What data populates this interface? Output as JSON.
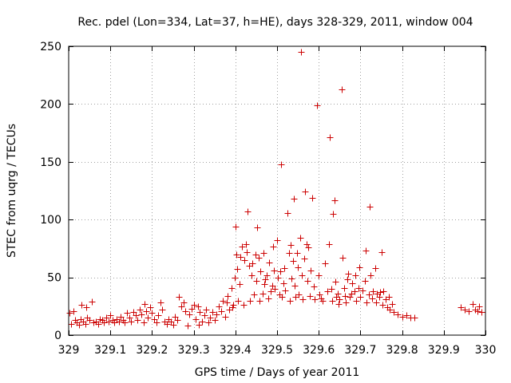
{
  "chart_data": {
    "type": "scatter",
    "title": "Rec. pdel (Lon=334, Lat=37, h=HE), days 328-329, 2011, window 004",
    "xlabel": "GPS time / Days of year 2011",
    "ylabel": "STEC from uqrg / TECUs",
    "xlim": [
      329,
      330
    ],
    "ylim": [
      0,
      250
    ],
    "x_ticks": [
      329,
      329.1,
      329.2,
      329.3,
      329.4,
      329.5,
      329.6,
      329.7,
      329.8,
      329.9,
      330
    ],
    "x_tick_labels": [
      "329",
      "329.1",
      "329.2",
      "329.3",
      "329.4",
      "329.5",
      "329.6",
      "329.7",
      "329.8",
      "329.9",
      "330"
    ],
    "y_ticks": [
      0,
      50,
      100,
      150,
      200,
      250
    ],
    "y_tick_labels": [
      "0",
      "50",
      "100",
      "150",
      "200",
      "250"
    ],
    "grid": true,
    "marker": "plus",
    "marker_color": "#cc0000",
    "series": [
      {
        "points": [
          [
            329.002,
            19
          ],
          [
            329.005,
            10
          ],
          [
            329.012,
            21
          ],
          [
            329.015,
            13
          ],
          [
            329.02,
            11
          ],
          [
            329.025,
            9
          ],
          [
            329.028,
            14
          ],
          [
            329.03,
            26
          ],
          [
            329.035,
            12
          ],
          [
            329.04,
            10
          ],
          [
            329.042,
            24
          ],
          [
            329.045,
            15
          ],
          [
            329.05,
            13
          ],
          [
            329.055,
            29
          ],
          [
            329.06,
            11
          ],
          [
            329.065,
            12
          ],
          [
            329.07,
            10
          ],
          [
            329.075,
            14
          ],
          [
            329.08,
            13
          ],
          [
            329.085,
            11
          ],
          [
            329.09,
            15
          ],
          [
            329.095,
            12
          ],
          [
            329.1,
            17
          ],
          [
            329.105,
            13
          ],
          [
            329.11,
            11
          ],
          [
            329.115,
            14
          ],
          [
            329.12,
            12
          ],
          [
            329.125,
            16
          ],
          [
            329.13,
            13
          ],
          [
            329.135,
            11
          ],
          [
            329.14,
            19
          ],
          [
            329.145,
            15
          ],
          [
            329.15,
            12
          ],
          [
            329.155,
            20
          ],
          [
            329.16,
            17
          ],
          [
            329.165,
            13
          ],
          [
            329.17,
            22
          ],
          [
            329.175,
            18
          ],
          [
            329.18,
            11
          ],
          [
            329.182,
            27
          ],
          [
            329.185,
            21
          ],
          [
            329.19,
            15
          ],
          [
            329.195,
            24
          ],
          [
            329.2,
            19
          ],
          [
            329.205,
            14
          ],
          [
            329.21,
            11
          ],
          [
            329.215,
            17
          ],
          [
            329.22,
            28
          ],
          [
            329.225,
            22
          ],
          [
            329.23,
            12
          ],
          [
            329.235,
            10
          ],
          [
            329.24,
            14
          ],
          [
            329.245,
            12
          ],
          [
            329.25,
            9
          ],
          [
            329.255,
            16
          ],
          [
            329.26,
            13
          ],
          [
            329.265,
            33
          ],
          [
            329.27,
            25
          ],
          [
            329.275,
            28
          ],
          [
            329.28,
            21
          ],
          [
            329.285,
            8
          ],
          [
            329.29,
            18
          ],
          [
            329.295,
            23
          ],
          [
            329.3,
            26
          ],
          [
            329.305,
            14
          ],
          [
            329.31,
            25
          ],
          [
            329.312,
            9
          ],
          [
            329.315,
            20
          ],
          [
            329.32,
            12
          ],
          [
            329.325,
            17
          ],
          [
            329.33,
            22
          ],
          [
            329.335,
            11
          ],
          [
            329.34,
            15
          ],
          [
            329.345,
            20
          ],
          [
            329.35,
            13
          ],
          [
            329.355,
            18
          ],
          [
            329.36,
            25
          ],
          [
            329.365,
            21
          ],
          [
            329.37,
            30
          ],
          [
            329.375,
            16
          ],
          [
            329.38,
            28
          ],
          [
            329.382,
            34
          ],
          [
            329.385,
            22
          ],
          [
            329.39,
            41
          ],
          [
            329.393,
            24
          ],
          [
            329.395,
            26
          ],
          [
            329.398,
            50
          ],
          [
            329.4,
            94
          ],
          [
            329.402,
            70
          ],
          [
            329.404,
            57
          ],
          [
            329.406,
            30
          ],
          [
            329.41,
            44
          ],
          [
            329.412,
            68
          ],
          [
            329.415,
            77
          ],
          [
            329.42,
            26
          ],
          [
            329.422,
            65
          ],
          [
            329.425,
            79
          ],
          [
            329.428,
            72
          ],
          [
            329.43,
            107
          ],
          [
            329.432,
            60
          ],
          [
            329.435,
            30
          ],
          [
            329.438,
            52
          ],
          [
            329.44,
            62
          ],
          [
            329.445,
            35
          ],
          [
            329.448,
            70
          ],
          [
            329.45,
            47
          ],
          [
            329.453,
            93
          ],
          [
            329.455,
            67
          ],
          [
            329.458,
            30
          ],
          [
            329.46,
            55
          ],
          [
            329.465,
            36
          ],
          [
            329.468,
            71
          ],
          [
            329.47,
            44
          ],
          [
            329.472,
            48
          ],
          [
            329.475,
            52
          ],
          [
            329.478,
            32
          ],
          [
            329.48,
            63
          ],
          [
            329.485,
            38
          ],
          [
            329.488,
            43
          ],
          [
            329.49,
            77
          ],
          [
            329.492,
            56
          ],
          [
            329.495,
            40
          ],
          [
            329.5,
            82
          ],
          [
            329.502,
            50
          ],
          [
            329.505,
            35
          ],
          [
            329.508,
            55
          ],
          [
            329.51,
            148
          ],
          [
            329.512,
            33
          ],
          [
            329.515,
            45
          ],
          [
            329.518,
            58
          ],
          [
            329.52,
            39
          ],
          [
            329.525,
            106
          ],
          [
            329.528,
            71
          ],
          [
            329.53,
            30
          ],
          [
            329.532,
            78
          ],
          [
            329.535,
            49
          ],
          [
            329.538,
            64
          ],
          [
            329.54,
            118
          ],
          [
            329.542,
            43
          ],
          [
            329.545,
            33
          ],
          [
            329.548,
            71
          ],
          [
            329.55,
            59
          ],
          [
            329.552,
            35
          ],
          [
            329.555,
            84
          ],
          [
            329.557,
            245
          ],
          [
            329.56,
            52
          ],
          [
            329.562,
            31
          ],
          [
            329.565,
            66
          ],
          [
            329.568,
            124
          ],
          [
            329.57,
            79
          ],
          [
            329.572,
            47
          ],
          [
            329.575,
            76
          ],
          [
            329.578,
            34
          ],
          [
            329.58,
            56
          ],
          [
            329.585,
            119
          ],
          [
            329.588,
            42
          ],
          [
            329.59,
            31
          ],
          [
            329.595,
            199
          ],
          [
            329.6,
            52
          ],
          [
            329.602,
            35
          ],
          [
            329.605,
            32
          ],
          [
            329.61,
            30
          ],
          [
            329.615,
            62
          ],
          [
            329.62,
            38
          ],
          [
            329.625,
            79
          ],
          [
            329.627,
            171
          ],
          [
            329.63,
            40
          ],
          [
            329.632,
            30
          ],
          [
            329.635,
            105
          ],
          [
            329.638,
            117
          ],
          [
            329.64,
            46
          ],
          [
            329.642,
            33
          ],
          [
            329.645,
            36
          ],
          [
            329.648,
            27
          ],
          [
            329.65,
            31
          ],
          [
            329.655,
            213
          ],
          [
            329.657,
            67
          ],
          [
            329.66,
            41
          ],
          [
            329.662,
            34
          ],
          [
            329.665,
            28
          ],
          [
            329.668,
            48
          ],
          [
            329.67,
            53
          ],
          [
            329.675,
            33
          ],
          [
            329.678,
            36
          ],
          [
            329.68,
            45
          ],
          [
            329.685,
            38
          ],
          [
            329.688,
            52
          ],
          [
            329.69,
            30
          ],
          [
            329.695,
            41
          ],
          [
            329.698,
            59
          ],
          [
            329.7,
            33
          ],
          [
            329.705,
            39
          ],
          [
            329.71,
            47
          ],
          [
            329.712,
            73
          ],
          [
            329.715,
            28
          ],
          [
            329.72,
            35
          ],
          [
            329.722,
            111
          ],
          [
            329.725,
            52
          ],
          [
            329.728,
            32
          ],
          [
            329.73,
            38
          ],
          [
            329.735,
            58
          ],
          [
            329.738,
            28
          ],
          [
            329.74,
            36
          ],
          [
            329.745,
            33
          ],
          [
            329.748,
            37
          ],
          [
            329.75,
            72
          ],
          [
            329.752,
            26
          ],
          [
            329.755,
            38
          ],
          [
            329.76,
            31
          ],
          [
            329.765,
            24
          ],
          [
            329.768,
            33
          ],
          [
            329.77,
            22
          ],
          [
            329.775,
            27
          ],
          [
            329.78,
            20
          ],
          [
            329.79,
            18
          ],
          [
            329.8,
            16
          ],
          [
            329.81,
            17
          ],
          [
            329.82,
            15
          ],
          [
            329.83,
            15
          ],
          [
            329.94,
            24
          ],
          [
            329.95,
            22
          ],
          [
            329.96,
            21
          ],
          [
            329.97,
            27
          ],
          [
            329.975,
            22
          ],
          [
            329.98,
            21
          ],
          [
            329.985,
            25
          ],
          [
            329.99,
            20
          ]
        ]
      }
    ]
  }
}
